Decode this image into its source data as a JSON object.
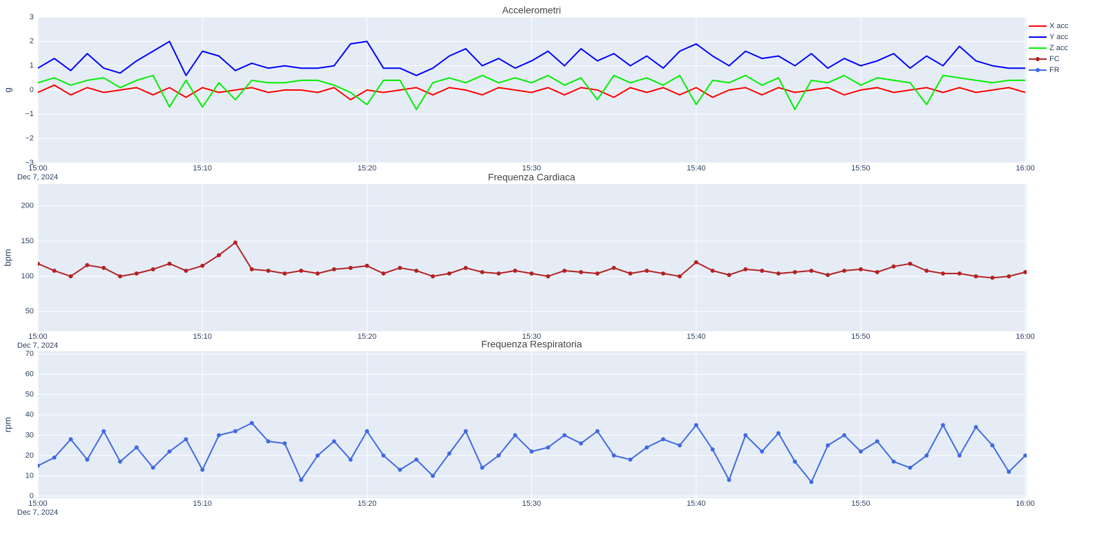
{
  "chart_data": [
    {
      "type": "line",
      "title": "Accelerometri",
      "y_label": "g",
      "x_date_label": "Dec 7, 2024",
      "x": [
        "2024-12-07T15:00",
        "2024-12-07T15:01",
        "2024-12-07T15:02",
        "2024-12-07T15:03",
        "2024-12-07T15:04",
        "2024-12-07T15:05",
        "2024-12-07T15:06",
        "2024-12-07T15:07",
        "2024-12-07T15:08",
        "2024-12-07T15:09",
        "2024-12-07T15:10",
        "2024-12-07T15:11",
        "2024-12-07T15:12",
        "2024-12-07T15:13",
        "2024-12-07T15:14",
        "2024-12-07T15:15",
        "2024-12-07T15:16",
        "2024-12-07T15:17",
        "2024-12-07T15:18",
        "2024-12-07T15:19",
        "2024-12-07T15:20",
        "2024-12-07T15:21",
        "2024-12-07T15:22",
        "2024-12-07T15:23",
        "2024-12-07T15:24",
        "2024-12-07T15:25",
        "2024-12-07T15:26",
        "2024-12-07T15:27",
        "2024-12-07T15:28",
        "2024-12-07T15:29",
        "2024-12-07T15:30",
        "2024-12-07T15:31",
        "2024-12-07T15:32",
        "2024-12-07T15:33",
        "2024-12-07T15:34",
        "2024-12-07T15:35",
        "2024-12-07T15:36",
        "2024-12-07T15:37",
        "2024-12-07T15:38",
        "2024-12-07T15:39",
        "2024-12-07T15:40",
        "2024-12-07T15:41",
        "2024-12-07T15:42",
        "2024-12-07T15:43",
        "2024-12-07T15:44",
        "2024-12-07T15:45",
        "2024-12-07T15:46",
        "2024-12-07T15:47",
        "2024-12-07T15:48",
        "2024-12-07T15:49",
        "2024-12-07T15:50",
        "2024-12-07T15:51",
        "2024-12-07T15:52",
        "2024-12-07T15:53",
        "2024-12-07T15:54",
        "2024-12-07T15:55",
        "2024-12-07T15:56",
        "2024-12-07T15:57",
        "2024-12-07T15:58",
        "2024-12-07T15:59",
        "2024-12-07T16:00"
      ],
      "series": [
        {
          "name": "X acc",
          "color": "#ff0000",
          "mode": "lines",
          "values": [
            -0.1,
            0.2,
            -0.2,
            0.1,
            -0.1,
            0.0,
            0.1,
            -0.2,
            0.1,
            -0.3,
            0.1,
            -0.1,
            0.0,
            0.1,
            -0.1,
            0.0,
            0.0,
            -0.1,
            0.1,
            -0.4,
            0.0,
            -0.1,
            0.0,
            0.1,
            -0.2,
            0.1,
            0.0,
            -0.2,
            0.1,
            0.0,
            -0.1,
            0.1,
            -0.2,
            0.1,
            0.0,
            -0.3,
            0.1,
            -0.1,
            0.1,
            -0.2,
            0.1,
            -0.3,
            0.0,
            0.1,
            -0.2,
            0.1,
            -0.1,
            0.0,
            0.1,
            -0.2,
            0.0,
            0.1,
            -0.1,
            0.0,
            0.1,
            -0.1,
            0.1,
            -0.1,
            0.0,
            0.1,
            -0.1
          ]
        },
        {
          "name": "Y acc",
          "color": "#0000ff",
          "mode": "lines",
          "values": [
            0.9,
            1.3,
            0.8,
            1.5,
            0.9,
            0.7,
            1.2,
            1.6,
            2.0,
            0.6,
            1.6,
            1.4,
            0.8,
            1.1,
            0.9,
            1.0,
            0.9,
            0.9,
            1.0,
            1.9,
            2.0,
            0.9,
            0.9,
            0.6,
            0.9,
            1.4,
            1.7,
            1.0,
            1.3,
            0.9,
            1.2,
            1.6,
            1.0,
            1.7,
            1.2,
            1.5,
            1.0,
            1.4,
            0.9,
            1.6,
            1.9,
            1.4,
            1.0,
            1.6,
            1.3,
            1.4,
            1.0,
            1.5,
            0.9,
            1.3,
            1.0,
            1.2,
            1.5,
            0.9,
            1.4,
            1.0,
            1.8,
            1.2,
            1.0,
            0.9,
            0.9
          ]
        },
        {
          "name": "Z acc",
          "color": "#00ee00",
          "mode": "lines",
          "values": [
            0.3,
            0.5,
            0.2,
            0.4,
            0.5,
            0.1,
            0.4,
            0.6,
            -0.7,
            0.4,
            -0.7,
            0.3,
            -0.4,
            0.4,
            0.3,
            0.3,
            0.4,
            0.4,
            0.2,
            -0.1,
            -0.6,
            0.4,
            0.4,
            -0.8,
            0.3,
            0.5,
            0.3,
            0.6,
            0.3,
            0.5,
            0.3,
            0.6,
            0.2,
            0.5,
            -0.4,
            0.6,
            0.3,
            0.5,
            0.2,
            0.6,
            -0.6,
            0.4,
            0.3,
            0.6,
            0.2,
            0.5,
            -0.8,
            0.4,
            0.3,
            0.6,
            0.2,
            0.5,
            0.4,
            0.3,
            -0.6,
            0.6,
            0.5,
            0.4,
            0.3,
            0.4,
            0.4
          ]
        }
      ],
      "xlim": [
        "2024-12-07T15:00",
        "2024-12-07T16:00"
      ],
      "xticks": [
        {
          "value": "2024-12-07T15:00",
          "label": "15:00"
        },
        {
          "value": "2024-12-07T15:10",
          "label": "15:10"
        },
        {
          "value": "2024-12-07T15:20",
          "label": "15:20"
        },
        {
          "value": "2024-12-07T15:30",
          "label": "15:30"
        },
        {
          "value": "2024-12-07T15:40",
          "label": "15:40"
        },
        {
          "value": "2024-12-07T15:50",
          "label": "15:50"
        },
        {
          "value": "2024-12-07T16:00",
          "label": "16:00"
        }
      ],
      "ylim": [
        -3,
        3
      ],
      "yticks": [
        {
          "value": -3,
          "label": "−3"
        },
        {
          "value": -2,
          "label": "−2"
        },
        {
          "value": -1,
          "label": "−1"
        },
        0,
        1,
        2,
        3
      ],
      "grid": true
    },
    {
      "type": "line",
      "title": "Frequenza Cardiaca",
      "y_label": "bpm",
      "x_date_label": "Dec 7, 2024",
      "x": [
        "2024-12-07T15:00",
        "2024-12-07T15:01",
        "2024-12-07T15:02",
        "2024-12-07T15:03",
        "2024-12-07T15:04",
        "2024-12-07T15:05",
        "2024-12-07T15:06",
        "2024-12-07T15:07",
        "2024-12-07T15:08",
        "2024-12-07T15:09",
        "2024-12-07T15:10",
        "2024-12-07T15:11",
        "2024-12-07T15:12",
        "2024-12-07T15:13",
        "2024-12-07T15:14",
        "2024-12-07T15:15",
        "2024-12-07T15:16",
        "2024-12-07T15:17",
        "2024-12-07T15:18",
        "2024-12-07T15:19",
        "2024-12-07T15:20",
        "2024-12-07T15:21",
        "2024-12-07T15:22",
        "2024-12-07T15:23",
        "2024-12-07T15:24",
        "2024-12-07T15:25",
        "2024-12-07T15:26",
        "2024-12-07T15:27",
        "2024-12-07T15:28",
        "2024-12-07T15:29",
        "2024-12-07T15:30",
        "2024-12-07T15:31",
        "2024-12-07T15:32",
        "2024-12-07T15:33",
        "2024-12-07T15:34",
        "2024-12-07T15:35",
        "2024-12-07T15:36",
        "2024-12-07T15:37",
        "2024-12-07T15:38",
        "2024-12-07T15:39",
        "2024-12-07T15:40",
        "2024-12-07T15:41",
        "2024-12-07T15:42",
        "2024-12-07T15:43",
        "2024-12-07T15:44",
        "2024-12-07T15:45",
        "2024-12-07T15:46",
        "2024-12-07T15:47",
        "2024-12-07T15:48",
        "2024-12-07T15:49",
        "2024-12-07T15:50",
        "2024-12-07T15:51",
        "2024-12-07T15:52",
        "2024-12-07T15:53",
        "2024-12-07T15:54",
        "2024-12-07T15:55",
        "2024-12-07T15:56",
        "2024-12-07T15:57",
        "2024-12-07T15:58",
        "2024-12-07T15:59",
        "2024-12-07T16:00"
      ],
      "series": [
        {
          "name": "FC",
          "color": "#b22222",
          "mode": "lines+markers",
          "values": [
            118,
            108,
            100,
            116,
            112,
            100,
            104,
            110,
            118,
            108,
            115,
            130,
            148,
            110,
            108,
            104,
            108,
            104,
            110,
            112,
            115,
            104,
            112,
            108,
            100,
            104,
            112,
            106,
            104,
            108,
            104,
            100,
            108,
            106,
            104,
            112,
            104,
            108,
            104,
            100,
            120,
            108,
            102,
            110,
            108,
            104,
            106,
            108,
            102,
            108,
            110,
            106,
            114,
            118,
            108,
            104,
            104,
            100,
            98,
            100,
            106
          ]
        }
      ],
      "xlim": [
        "2024-12-07T15:00",
        "2024-12-07T16:00"
      ],
      "xticks": [
        {
          "value": "2024-12-07T15:00",
          "label": "15:00"
        },
        {
          "value": "2024-12-07T15:10",
          "label": "15:10"
        },
        {
          "value": "2024-12-07T15:20",
          "label": "15:20"
        },
        {
          "value": "2024-12-07T15:30",
          "label": "15:30"
        },
        {
          "value": "2024-12-07T15:40",
          "label": "15:40"
        },
        {
          "value": "2024-12-07T15:50",
          "label": "15:50"
        },
        {
          "value": "2024-12-07T16:00",
          "label": "16:00"
        }
      ],
      "ylim": [
        22,
        231
      ],
      "yticks": [
        50,
        100,
        150,
        200
      ],
      "grid": true
    },
    {
      "type": "line",
      "title": "Frequenza Respiratoria",
      "y_label": "rpm",
      "x_date_label": "Dec 7, 2024",
      "x": [
        "2024-12-07T15:00",
        "2024-12-07T15:01",
        "2024-12-07T15:02",
        "2024-12-07T15:03",
        "2024-12-07T15:04",
        "2024-12-07T15:05",
        "2024-12-07T15:06",
        "2024-12-07T15:07",
        "2024-12-07T15:08",
        "2024-12-07T15:09",
        "2024-12-07T15:10",
        "2024-12-07T15:11",
        "2024-12-07T15:12",
        "2024-12-07T15:13",
        "2024-12-07T15:14",
        "2024-12-07T15:15",
        "2024-12-07T15:16",
        "2024-12-07T15:17",
        "2024-12-07T15:18",
        "2024-12-07T15:19",
        "2024-12-07T15:20",
        "2024-12-07T15:21",
        "2024-12-07T15:22",
        "2024-12-07T15:23",
        "2024-12-07T15:24",
        "2024-12-07T15:25",
        "2024-12-07T15:26",
        "2024-12-07T15:27",
        "2024-12-07T15:28",
        "2024-12-07T15:29",
        "2024-12-07T15:30",
        "2024-12-07T15:31",
        "2024-12-07T15:32",
        "2024-12-07T15:33",
        "2024-12-07T15:34",
        "2024-12-07T15:35",
        "2024-12-07T15:36",
        "2024-12-07T15:37",
        "2024-12-07T15:38",
        "2024-12-07T15:39",
        "2024-12-07T15:40",
        "2024-12-07T15:41",
        "2024-12-07T15:42",
        "2024-12-07T15:43",
        "2024-12-07T15:44",
        "2024-12-07T15:45",
        "2024-12-07T15:46",
        "2024-12-07T15:47",
        "2024-12-07T15:48",
        "2024-12-07T15:49",
        "2024-12-07T15:50",
        "2024-12-07T15:51",
        "2024-12-07T15:52",
        "2024-12-07T15:53",
        "2024-12-07T15:54",
        "2024-12-07T15:55",
        "2024-12-07T15:56",
        "2024-12-07T15:57",
        "2024-12-07T15:58",
        "2024-12-07T15:59",
        "2024-12-07T16:00"
      ],
      "series": [
        {
          "name": "FR",
          "color": "#4169e1",
          "mode": "lines+markers",
          "values": [
            15,
            19,
            28,
            18,
            32,
            17,
            24,
            14,
            22,
            28,
            13,
            30,
            32,
            36,
            27,
            26,
            8,
            20,
            27,
            18,
            32,
            20,
            13,
            18,
            10,
            21,
            32,
            14,
            20,
            30,
            22,
            24,
            30,
            26,
            32,
            20,
            18,
            24,
            28,
            25,
            35,
            23,
            8,
            30,
            22,
            31,
            17,
            7,
            25,
            30,
            22,
            27,
            17,
            14,
            20,
            35,
            20,
            34,
            25,
            12,
            20
          ]
        }
      ],
      "xlim": [
        "2024-12-07T15:00",
        "2024-12-07T16:00"
      ],
      "xticks": [
        {
          "value": "2024-12-07T15:00",
          "label": "15:00"
        },
        {
          "value": "2024-12-07T15:10",
          "label": "15:10"
        },
        {
          "value": "2024-12-07T15:20",
          "label": "15:20"
        },
        {
          "value": "2024-12-07T15:30",
          "label": "15:30"
        },
        {
          "value": "2024-12-07T15:40",
          "label": "15:40"
        },
        {
          "value": "2024-12-07T15:50",
          "label": "15:50"
        },
        {
          "value": "2024-12-07T16:00",
          "label": "16:00"
        }
      ],
      "ylim": [
        -1,
        71.4
      ],
      "yticks": [
        0,
        10,
        20,
        30,
        40,
        50,
        60,
        70
      ],
      "grid": true
    }
  ]
}
